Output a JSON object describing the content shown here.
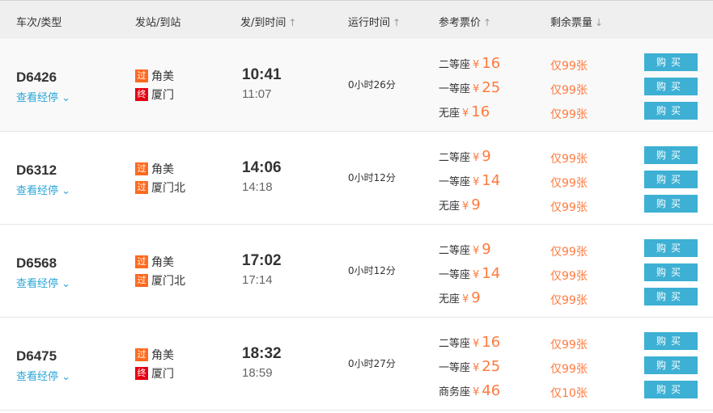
{
  "header": {
    "train": "车次/类型",
    "station": "发站/到站",
    "time": "发/到时间",
    "duration": "运行时间",
    "price": "参考票价",
    "remaining": "剩余票量",
    "sort_up": "↑",
    "sort_down": "↓"
  },
  "stops_label": "查看经停",
  "buy_label": "购买",
  "pass_tag": "过",
  "end_tag": "终",
  "colors": {
    "pass": "#ff6a1f",
    "end": "#e60012",
    "accent": "#3db0d4",
    "price": "#ff7a3d"
  },
  "trains": [
    {
      "no": "D6426",
      "from": "角美",
      "from_tag": "过",
      "to": "厦门",
      "to_tag": "终",
      "to_type": "end",
      "dep": "10:41",
      "arr": "11:07",
      "dur": "0小时26分",
      "seats": [
        {
          "name": "二等座",
          "price": "16",
          "left": "仅99张"
        },
        {
          "name": "一等座",
          "price": "25",
          "left": "仅99张"
        },
        {
          "name": "无座",
          "price": "16",
          "left": "仅99张"
        }
      ]
    },
    {
      "no": "D6312",
      "from": "角美",
      "from_tag": "过",
      "to": "厦门北",
      "to_tag": "过",
      "to_type": "pass",
      "dep": "14:06",
      "arr": "14:18",
      "dur": "0小时12分",
      "seats": [
        {
          "name": "二等座",
          "price": "9",
          "left": "仅99张"
        },
        {
          "name": "一等座",
          "price": "14",
          "left": "仅99张"
        },
        {
          "name": "无座",
          "price": "9",
          "left": "仅99张"
        }
      ]
    },
    {
      "no": "D6568",
      "from": "角美",
      "from_tag": "过",
      "to": "厦门北",
      "to_tag": "过",
      "to_type": "pass",
      "dep": "17:02",
      "arr": "17:14",
      "dur": "0小时12分",
      "seats": [
        {
          "name": "二等座",
          "price": "9",
          "left": "仅99张"
        },
        {
          "name": "一等座",
          "price": "14",
          "left": "仅99张"
        },
        {
          "name": "无座",
          "price": "9",
          "left": "仅99张"
        }
      ]
    },
    {
      "no": "D6475",
      "from": "角美",
      "from_tag": "过",
      "to": "厦门",
      "to_tag": "终",
      "to_type": "end",
      "dep": "18:32",
      "arr": "18:59",
      "dur": "0小时27分",
      "seats": [
        {
          "name": "二等座",
          "price": "16",
          "left": "仅99张"
        },
        {
          "name": "一等座",
          "price": "25",
          "left": "仅99张"
        },
        {
          "name": "商务座",
          "price": "46",
          "left": "仅10张"
        }
      ]
    }
  ]
}
